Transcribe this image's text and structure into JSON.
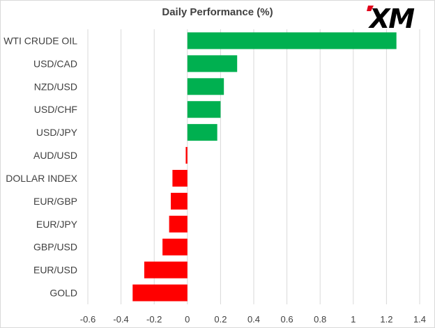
{
  "brand": {
    "logo_text": "XM",
    "logo_color": "#000000",
    "accent_color": "#e1001a"
  },
  "chart_data": {
    "type": "bar",
    "orientation": "horizontal",
    "title": "Daily Performance  (%)",
    "categories": [
      "WTI CRUDE OIL",
      "USD/CAD",
      "NZD/USD",
      "USD/CHF",
      "USD/JPY",
      "AUD/USD",
      "DOLLAR INDEX",
      "EUR/GBP",
      "EUR/JPY",
      "GBP/USD",
      "EUR/USD",
      "GOLD"
    ],
    "values": [
      1.26,
      0.3,
      0.22,
      0.2,
      0.18,
      -0.01,
      -0.09,
      -0.1,
      -0.11,
      -0.15,
      -0.26,
      -0.33
    ],
    "xlim": [
      -0.6,
      1.4
    ],
    "xticks": [
      "-0.6",
      "-0.4",
      "-0.2",
      "0",
      "0.2",
      "0.4",
      "0.6",
      "0.8",
      "1",
      "1.2",
      "1.4"
    ],
    "grid": "vertical",
    "positive_color": "#00b050",
    "negative_color": "#ff0000"
  }
}
